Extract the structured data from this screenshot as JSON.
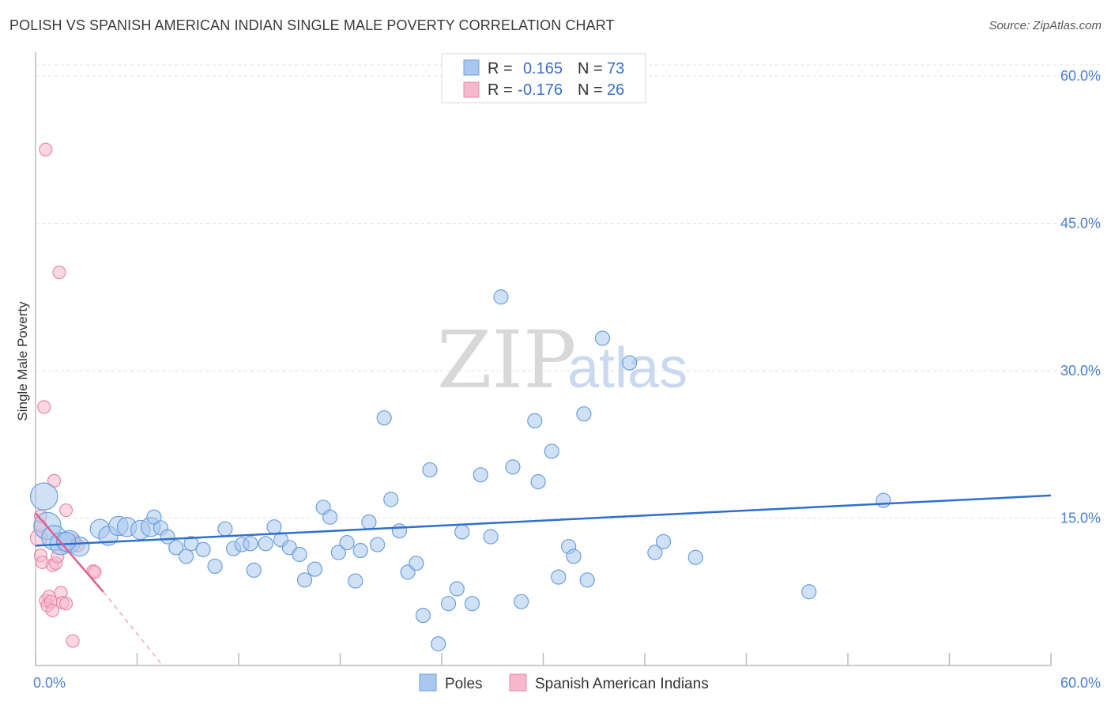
{
  "header": {
    "title": "POLISH VS SPANISH AMERICAN INDIAN SINGLE MALE POVERTY CORRELATION CHART",
    "source": "Source: ZipAtlas.com"
  },
  "watermark": {
    "zip": "ZIP",
    "atlas": "atlas"
  },
  "colors": {
    "blue_fill": "#a9c8ef",
    "blue_stroke": "#6a9fdc",
    "blue_line": "#2f6fcc",
    "pink_fill": "#f6b8cc",
    "pink_stroke": "#e889a8",
    "pink_line": "#e0608a",
    "grid": "#e0e0e0",
    "tick_text": "#4a7fd0"
  },
  "legend": {
    "rows": [
      {
        "r_label": "R =",
        "r_value": "0.165",
        "n_label": "N =",
        "n_value": "73"
      },
      {
        "r_label": "R =",
        "r_value": "-0.176",
        "n_label": "N =",
        "n_value": "26"
      }
    ]
  },
  "bottom_legend": {
    "poles": "Poles",
    "spanish": "Spanish American Indians"
  },
  "chart_data": {
    "type": "scatter",
    "ylabel": "Single Male Poverty",
    "xlim": [
      0,
      60
    ],
    "ylim": [
      0,
      60
    ],
    "x_tick_labels": [
      "0.0%",
      "60.0%"
    ],
    "y_ticks": [
      {
        "value": 15,
        "label": "15.0%"
      },
      {
        "value": 30,
        "label": "30.0%"
      },
      {
        "value": 45,
        "label": "45.0%"
      },
      {
        "value": 60,
        "label": "60.0%"
      }
    ],
    "grid": true,
    "series": [
      {
        "name": "Poles",
        "color": "blue",
        "trend": {
          "x": [
            0,
            60
          ],
          "y": [
            12.2,
            17.3
          ]
        },
        "points": [
          [
            0.5,
            17.2,
            3
          ],
          [
            0.7,
            14.2,
            3
          ],
          [
            1.1,
            13.0,
            2.5
          ],
          [
            1.5,
            12.4,
            2
          ],
          [
            2.0,
            12.6,
            2
          ],
          [
            2.6,
            12.1,
            1.5
          ],
          [
            3.8,
            13.9,
            1.5
          ],
          [
            4.3,
            13.2,
            1.5
          ],
          [
            4.9,
            14.2,
            1.5
          ],
          [
            5.4,
            14.1,
            1.5
          ],
          [
            6.2,
            13.8,
            1.5
          ],
          [
            6.8,
            14.1,
            1.5
          ],
          [
            7.0,
            15.1,
            1
          ],
          [
            7.4,
            14.0,
            1
          ],
          [
            7.8,
            13.1,
            1
          ],
          [
            8.3,
            12.0,
            1
          ],
          [
            8.9,
            11.1,
            1
          ],
          [
            9.2,
            12.4,
            1
          ],
          [
            9.9,
            11.8,
            1
          ],
          [
            10.6,
            10.1,
            1
          ],
          [
            11.2,
            13.9,
            1
          ],
          [
            11.7,
            11.9,
            1
          ],
          [
            12.2,
            12.3,
            1
          ],
          [
            12.7,
            12.4,
            1
          ],
          [
            12.9,
            9.7,
            1
          ],
          [
            13.6,
            12.4,
            1
          ],
          [
            14.1,
            14.1,
            1
          ],
          [
            14.5,
            12.8,
            1
          ],
          [
            15.0,
            12.0,
            1
          ],
          [
            15.6,
            11.3,
            1
          ],
          [
            15.9,
            8.7,
            1
          ],
          [
            16.5,
            9.8,
            1
          ],
          [
            17.0,
            16.1,
            1
          ],
          [
            17.4,
            15.1,
            1
          ],
          [
            17.9,
            11.5,
            1
          ],
          [
            18.4,
            12.5,
            1
          ],
          [
            18.9,
            8.6,
            1
          ],
          [
            19.2,
            11.7,
            1
          ],
          [
            19.7,
            14.6,
            1
          ],
          [
            20.2,
            12.3,
            1
          ],
          [
            20.6,
            25.2,
            1
          ],
          [
            21.0,
            16.9,
            1
          ],
          [
            21.5,
            13.7,
            1
          ],
          [
            22.0,
            9.5,
            1
          ],
          [
            22.5,
            10.4,
            1
          ],
          [
            22.9,
            5.1,
            1
          ],
          [
            23.3,
            19.9,
            1
          ],
          [
            23.8,
            2.2,
            1
          ],
          [
            24.4,
            6.3,
            1
          ],
          [
            24.9,
            7.8,
            1
          ],
          [
            25.2,
            13.6,
            1
          ],
          [
            25.8,
            6.3,
            1
          ],
          [
            26.3,
            19.4,
            1
          ],
          [
            26.9,
            13.1,
            1
          ],
          [
            27.5,
            37.5,
            1
          ],
          [
            28.2,
            20.2,
            1
          ],
          [
            28.7,
            6.5,
            1
          ],
          [
            29.5,
            24.9,
            1
          ],
          [
            29.7,
            18.7,
            1
          ],
          [
            30.5,
            21.8,
            1
          ],
          [
            30.9,
            9.0,
            1
          ],
          [
            31.5,
            12.1,
            1
          ],
          [
            31.8,
            11.1,
            1
          ],
          [
            32.4,
            25.6,
            1
          ],
          [
            32.6,
            8.7,
            1
          ],
          [
            33.5,
            33.3,
            1
          ],
          [
            35.1,
            30.8,
            1
          ],
          [
            36.6,
            11.5,
            1
          ],
          [
            37.1,
            12.6,
            1
          ],
          [
            39.0,
            11.0,
            1
          ],
          [
            45.7,
            7.5,
            1
          ],
          [
            50.1,
            16.8,
            1
          ],
          [
            1.8,
            12.6,
            1.5
          ]
        ]
      },
      {
        "name": "Spanish American Indians",
        "color": "pink",
        "trend": {
          "x": [
            0,
            4
          ],
          "y": [
            15.5,
            7.5
          ]
        },
        "trend_dash": {
          "x": [
            4,
            7.5
          ],
          "y": [
            7.5,
            0
          ]
        },
        "points": [
          [
            0.2,
            13.0,
            1.5
          ],
          [
            0.3,
            11.2,
            1
          ],
          [
            0.3,
            14.2,
            1
          ],
          [
            0.4,
            10.5,
            1
          ],
          [
            0.5,
            26.3,
            1
          ],
          [
            0.6,
            52.5,
            1
          ],
          [
            0.6,
            6.6,
            1
          ],
          [
            0.7,
            6.1,
            1
          ],
          [
            0.8,
            7.0,
            1
          ],
          [
            0.9,
            6.5,
            1
          ],
          [
            1.0,
            10.2,
            1
          ],
          [
            1.0,
            5.6,
            1
          ],
          [
            1.1,
            18.8,
            1
          ],
          [
            1.2,
            10.4,
            1
          ],
          [
            1.3,
            11.1,
            1
          ],
          [
            1.4,
            40.0,
            1
          ],
          [
            1.5,
            7.4,
            1
          ],
          [
            1.6,
            6.4,
            1
          ],
          [
            1.8,
            15.8,
            1
          ],
          [
            1.8,
            6.3,
            1
          ],
          [
            2.2,
            12.7,
            1
          ],
          [
            2.2,
            2.5,
            1
          ],
          [
            2.5,
            12.2,
            1
          ],
          [
            3.4,
            9.6,
            1
          ],
          [
            3.5,
            9.5,
            1
          ],
          [
            0.3,
            15.2,
            1
          ]
        ]
      }
    ]
  }
}
